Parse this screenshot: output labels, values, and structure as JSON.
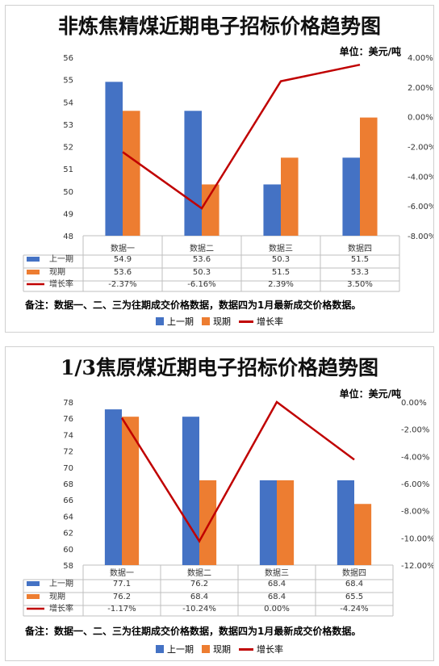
{
  "charts": [
    {
      "title": "非炼焦精煤近期电子招标价格趋势图",
      "unit": "单位：美元/吨",
      "note": "备注：数据一、二、三为往期成交价格数据，数据四为1月最新成交价格数据。",
      "labels": [
        "上一期",
        "现期",
        "增长率"
      ]
    },
    {
      "title": "1/3焦原煤近期电子招标价格趋势图",
      "unit": "单位：美元/吨",
      "note": "备注：数据一、二、三为往期成交价格数据，数据四为1月最新成交价格数据。",
      "labels": [
        "上一期",
        "现期",
        "增长率"
      ]
    }
  ],
  "colors": {
    "prev": "#4472C4",
    "curr": "#ED7D31",
    "growth": "#C00000"
  },
  "chart_data": [
    {
      "type": "bar",
      "categories": [
        "数据一",
        "数据二",
        "数据三",
        "数据四"
      ],
      "series": [
        {
          "name": "上一期",
          "values": [
            54.9,
            53.6,
            50.3,
            51.5
          ]
        },
        {
          "name": "现期",
          "values": [
            53.6,
            50.3,
            51.5,
            53.3
          ]
        },
        {
          "name": "增长率",
          "type": "line",
          "axis": "right",
          "values": [
            -2.37,
            -6.16,
            2.39,
            3.5
          ],
          "value_labels": [
            "-2.37%",
            "-6.16%",
            "2.39%",
            "3.50%"
          ]
        }
      ],
      "ylim": [
        48,
        56
      ],
      "yticks": [
        48,
        49,
        50,
        51,
        52,
        53,
        54,
        55,
        56
      ],
      "y2lim": [
        -8,
        4
      ],
      "y2ticks": [
        "-8.00%",
        "-6.00%",
        "-4.00%",
        "-2.00%",
        "0.00%",
        "2.00%",
        "4.00%"
      ],
      "table": true
    },
    {
      "type": "bar",
      "categories": [
        "数据一",
        "数据二",
        "数据三",
        "数据四"
      ],
      "series": [
        {
          "name": "上一期",
          "values": [
            77.1,
            76.2,
            68.4,
            68.4
          ]
        },
        {
          "name": "现期",
          "values": [
            76.2,
            68.4,
            68.4,
            65.5
          ]
        },
        {
          "name": "增长率",
          "type": "line",
          "axis": "right",
          "values": [
            -1.17,
            -10.24,
            0.0,
            -4.24
          ],
          "value_labels": [
            "-1.17%",
            "-10.24%",
            "0.00%",
            "-4.24%"
          ]
        }
      ],
      "ylim": [
        58,
        78
      ],
      "yticks": [
        58,
        60,
        62,
        64,
        66,
        68,
        70,
        72,
        74,
        76,
        78
      ],
      "y2lim": [
        -12,
        0
      ],
      "y2ticks": [
        "-12.00%",
        "-10.00%",
        "-8.00%",
        "-6.00%",
        "-4.00%",
        "-2.00%",
        "0.00%"
      ],
      "table": true
    }
  ]
}
